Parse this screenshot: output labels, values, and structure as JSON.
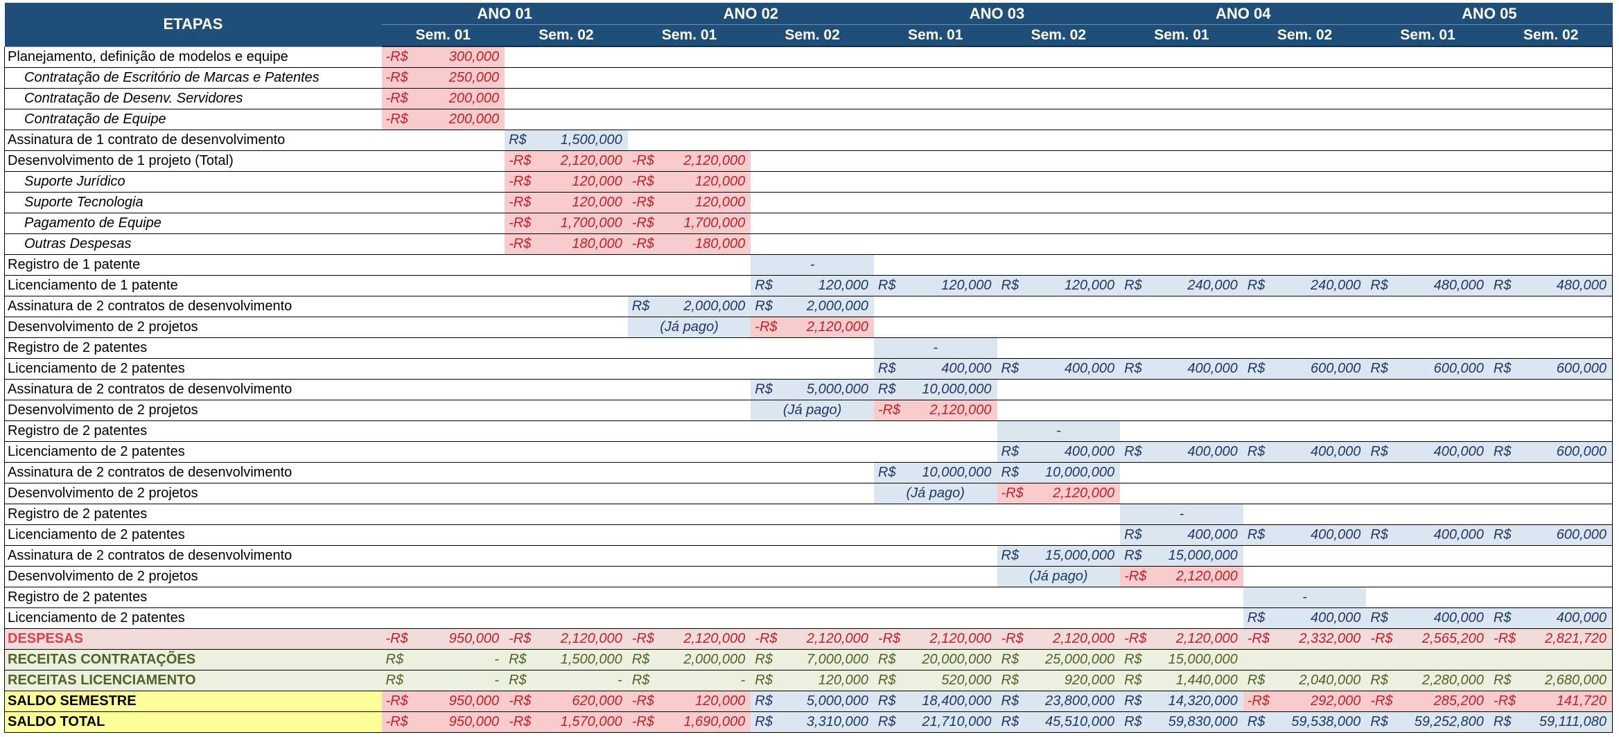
{
  "header": {
    "etapas": "ETAPAS",
    "years": [
      "ANO 01",
      "ANO 02",
      "ANO 03",
      "ANO 04",
      "ANO 05"
    ],
    "sems": [
      "Sem. 01",
      "Sem. 02",
      "Sem. 01",
      "Sem. 02",
      "Sem. 01",
      "Sem. 02",
      "Sem. 01",
      "Sem. 02",
      "Sem. 01",
      "Sem. 02"
    ]
  },
  "rows": [
    {
      "label": "Planejamento, definição de modelos e equipe",
      "style": "",
      "cells": [
        {
          "col": 0,
          "type": "neg",
          "cur": "-R$",
          "val": "300,000"
        }
      ]
    },
    {
      "label": "Contratação de Escritório de Marcas e Patentes",
      "style": "sub",
      "cells": [
        {
          "col": 0,
          "type": "neg",
          "cur": "-R$",
          "val": "250,000"
        }
      ]
    },
    {
      "label": "Contratação de Desenv. Servidores",
      "style": "sub",
      "cells": [
        {
          "col": 0,
          "type": "neg",
          "cur": "-R$",
          "val": "200,000"
        }
      ]
    },
    {
      "label": "Contratação de Equipe",
      "style": "sub",
      "cells": [
        {
          "col": 0,
          "type": "neg",
          "cur": "-R$",
          "val": "200,000"
        }
      ]
    },
    {
      "label": "Assinatura de 1 contrato de desenvolvimento",
      "style": "",
      "cells": [
        {
          "col": 1,
          "type": "pos",
          "cur": "R$",
          "val": "1,500,000"
        }
      ]
    },
    {
      "label": "Desenvolvimento de 1 projeto (Total)",
      "style": "",
      "cells": [
        {
          "col": 1,
          "type": "neg",
          "cur": "-R$",
          "val": "2,120,000"
        },
        {
          "col": 2,
          "type": "neg",
          "cur": "-R$",
          "val": "2,120,000"
        }
      ]
    },
    {
      "label": "Suporte Jurídico",
      "style": "sub",
      "cells": [
        {
          "col": 1,
          "type": "neg",
          "cur": "-R$",
          "val": "120,000"
        },
        {
          "col": 2,
          "type": "neg",
          "cur": "-R$",
          "val": "120,000"
        }
      ]
    },
    {
      "label": "Suporte Tecnologia",
      "style": "sub",
      "cells": [
        {
          "col": 1,
          "type": "neg",
          "cur": "-R$",
          "val": "120,000"
        },
        {
          "col": 2,
          "type": "neg",
          "cur": "-R$",
          "val": "120,000"
        }
      ]
    },
    {
      "label": "Pagamento de Equipe",
      "style": "sub",
      "cells": [
        {
          "col": 1,
          "type": "neg",
          "cur": "-R$",
          "val": "1,700,000"
        },
        {
          "col": 2,
          "type": "neg",
          "cur": "-R$",
          "val": "1,700,000"
        }
      ]
    },
    {
      "label": "Outras Despesas",
      "style": "sub",
      "cells": [
        {
          "col": 1,
          "type": "neg",
          "cur": "-R$",
          "val": "180,000"
        },
        {
          "col": 2,
          "type": "neg",
          "cur": "-R$",
          "val": "180,000"
        }
      ]
    },
    {
      "label": "Registro de 1 patente",
      "style": "",
      "cells": [
        {
          "col": 3,
          "type": "dash",
          "cur": "",
          "val": "-"
        }
      ]
    },
    {
      "label": "Licenciamento de 1 patente",
      "style": "",
      "cells": [
        {
          "col": 3,
          "type": "pos",
          "cur": "R$",
          "val": "120,000"
        },
        {
          "col": 4,
          "type": "pos",
          "cur": "R$",
          "val": "120,000"
        },
        {
          "col": 5,
          "type": "pos",
          "cur": "R$",
          "val": "120,000"
        },
        {
          "col": 6,
          "type": "pos",
          "cur": "R$",
          "val": "240,000"
        },
        {
          "col": 7,
          "type": "pos",
          "cur": "R$",
          "val": "240,000"
        },
        {
          "col": 8,
          "type": "pos",
          "cur": "R$",
          "val": "480,000"
        },
        {
          "col": 9,
          "type": "pos",
          "cur": "R$",
          "val": "480,000"
        }
      ]
    },
    {
      "label": "Assinatura de 2 contratos de desenvolvimento",
      "style": "",
      "cells": [
        {
          "col": 2,
          "type": "pos",
          "cur": "R$",
          "val": "2,000,000"
        },
        {
          "col": 3,
          "type": "pos",
          "cur": "R$",
          "val": "2,000,000"
        }
      ]
    },
    {
      "label": "Desenvolvimento de 2 projetos",
      "style": "",
      "cells": [
        {
          "col": 2,
          "type": "note",
          "cur": "",
          "val": "(Já pago)"
        },
        {
          "col": 3,
          "type": "neg",
          "cur": "-R$",
          "val": "2,120,000"
        }
      ]
    },
    {
      "label": "Registro de 2 patentes",
      "style": "",
      "cells": [
        {
          "col": 4,
          "type": "dash",
          "cur": "",
          "val": "-"
        }
      ]
    },
    {
      "label": "Licenciamento de 2 patentes",
      "style": "",
      "cells": [
        {
          "col": 4,
          "type": "pos",
          "cur": "R$",
          "val": "400,000"
        },
        {
          "col": 5,
          "type": "pos",
          "cur": "R$",
          "val": "400,000"
        },
        {
          "col": 6,
          "type": "pos",
          "cur": "R$",
          "val": "400,000"
        },
        {
          "col": 7,
          "type": "pos",
          "cur": "R$",
          "val": "600,000"
        },
        {
          "col": 8,
          "type": "pos",
          "cur": "R$",
          "val": "600,000"
        },
        {
          "col": 9,
          "type": "pos",
          "cur": "R$",
          "val": "600,000"
        }
      ]
    },
    {
      "label": "Assinatura de 2 contratos de desenvolvimento",
      "style": "",
      "cells": [
        {
          "col": 3,
          "type": "pos",
          "cur": "R$",
          "val": "5,000,000"
        },
        {
          "col": 4,
          "type": "pos",
          "cur": "R$",
          "val": "10,000,000"
        }
      ]
    },
    {
      "label": "Desenvolvimento de 2 projetos",
      "style": "",
      "cells": [
        {
          "col": 3,
          "type": "note",
          "cur": "",
          "val": "(Já pago)"
        },
        {
          "col": 4,
          "type": "neg",
          "cur": "-R$",
          "val": "2,120,000"
        }
      ]
    },
    {
      "label": "Registro de 2 patentes",
      "style": "",
      "cells": [
        {
          "col": 5,
          "type": "dash",
          "cur": "",
          "val": "-"
        }
      ]
    },
    {
      "label": "Licenciamento de 2 patentes",
      "style": "",
      "cells": [
        {
          "col": 5,
          "type": "pos",
          "cur": "R$",
          "val": "400,000"
        },
        {
          "col": 6,
          "type": "pos",
          "cur": "R$",
          "val": "400,000"
        },
        {
          "col": 7,
          "type": "pos",
          "cur": "R$",
          "val": "400,000"
        },
        {
          "col": 8,
          "type": "pos",
          "cur": "R$",
          "val": "400,000"
        },
        {
          "col": 9,
          "type": "pos",
          "cur": "R$",
          "val": "600,000"
        }
      ]
    },
    {
      "label": "Assinatura de 2 contratos de desenvolvimento",
      "style": "",
      "cells": [
        {
          "col": 4,
          "type": "pos",
          "cur": "R$",
          "val": "10,000,000"
        },
        {
          "col": 5,
          "type": "pos",
          "cur": "R$",
          "val": "10,000,000"
        }
      ]
    },
    {
      "label": "Desenvolvimento de 2 projetos",
      "style": "",
      "cells": [
        {
          "col": 4,
          "type": "note",
          "cur": "",
          "val": "(Já pago)"
        },
        {
          "col": 5,
          "type": "neg",
          "cur": "-R$",
          "val": "2,120,000"
        }
      ]
    },
    {
      "label": "Registro de 2 patentes",
      "style": "",
      "cells": [
        {
          "col": 6,
          "type": "dash",
          "cur": "",
          "val": "-"
        }
      ]
    },
    {
      "label": "Licenciamento de 2 patentes",
      "style": "",
      "cells": [
        {
          "col": 6,
          "type": "pos",
          "cur": "R$",
          "val": "400,000"
        },
        {
          "col": 7,
          "type": "pos",
          "cur": "R$",
          "val": "400,000"
        },
        {
          "col": 8,
          "type": "pos",
          "cur": "R$",
          "val": "400,000"
        },
        {
          "col": 9,
          "type": "pos",
          "cur": "R$",
          "val": "600,000"
        }
      ]
    },
    {
      "label": "Assinatura de 2 contratos de desenvolvimento",
      "style": "",
      "cells": [
        {
          "col": 5,
          "type": "pos",
          "cur": "R$",
          "val": "15,000,000"
        },
        {
          "col": 6,
          "type": "pos",
          "cur": "R$",
          "val": "15,000,000"
        }
      ]
    },
    {
      "label": "Desenvolvimento de 2 projetos",
      "style": "",
      "cells": [
        {
          "col": 5,
          "type": "note",
          "cur": "",
          "val": "(Já pago)"
        },
        {
          "col": 6,
          "type": "neg",
          "cur": "-R$",
          "val": "2,120,000"
        }
      ]
    },
    {
      "label": "Registro de 2 patentes",
      "style": "",
      "cells": [
        {
          "col": 7,
          "type": "dash",
          "cur": "",
          "val": "-"
        }
      ]
    },
    {
      "label": "Licenciamento de 2 patentes",
      "style": "",
      "cells": [
        {
          "col": 7,
          "type": "pos",
          "cur": "R$",
          "val": "400,000"
        },
        {
          "col": 8,
          "type": "pos",
          "cur": "R$",
          "val": "400,000"
        },
        {
          "col": 9,
          "type": "pos",
          "cur": "R$",
          "val": "400,000"
        }
      ]
    }
  ],
  "summary": [
    {
      "key": "desp",
      "label": "DESPESAS",
      "cells": [
        {
          "cur": "-R$",
          "val": "950,000"
        },
        {
          "cur": "-R$",
          "val": "2,120,000"
        },
        {
          "cur": "-R$",
          "val": "2,120,000"
        },
        {
          "cur": "-R$",
          "val": "2,120,000"
        },
        {
          "cur": "-R$",
          "val": "2,120,000"
        },
        {
          "cur": "-R$",
          "val": "2,120,000"
        },
        {
          "cur": "-R$",
          "val": "2,120,000"
        },
        {
          "cur": "-R$",
          "val": "2,332,000"
        },
        {
          "cur": "-R$",
          "val": "2,565,200"
        },
        {
          "cur": "-R$",
          "val": "2,821,720"
        }
      ]
    },
    {
      "key": "rc",
      "label": "RECEITAS CONTRATAÇÕES",
      "cells": [
        {
          "cur": "R$",
          "val": "-"
        },
        {
          "cur": "R$",
          "val": "1,500,000"
        },
        {
          "cur": "R$",
          "val": "2,000,000"
        },
        {
          "cur": "R$",
          "val": "7,000,000"
        },
        {
          "cur": "R$",
          "val": "20,000,000"
        },
        {
          "cur": "R$",
          "val": "25,000,000"
        },
        {
          "cur": "R$",
          "val": "15,000,000"
        },
        {
          "cur": "",
          "val": ""
        },
        {
          "cur": "",
          "val": ""
        },
        {
          "cur": "",
          "val": ""
        }
      ]
    },
    {
      "key": "rl",
      "label": "RECEITAS LICENCIAMENTO",
      "cells": [
        {
          "cur": "R$",
          "val": "-"
        },
        {
          "cur": "R$",
          "val": "-"
        },
        {
          "cur": "R$",
          "val": "-"
        },
        {
          "cur": "R$",
          "val": "120,000"
        },
        {
          "cur": "R$",
          "val": "520,000"
        },
        {
          "cur": "R$",
          "val": "920,000"
        },
        {
          "cur": "R$",
          "val": "1,440,000"
        },
        {
          "cur": "R$",
          "val": "2,040,000"
        },
        {
          "cur": "R$",
          "val": "2,280,000"
        },
        {
          "cur": "R$",
          "val": "2,680,000"
        }
      ]
    },
    {
      "key": "ss",
      "label": "SALDO SEMESTRE",
      "cells": [
        {
          "cur": "-R$",
          "val": "950,000",
          "type": "neg"
        },
        {
          "cur": "-R$",
          "val": "620,000",
          "type": "neg"
        },
        {
          "cur": "-R$",
          "val": "120,000",
          "type": "neg"
        },
        {
          "cur": "R$",
          "val": "5,000,000",
          "type": "pos"
        },
        {
          "cur": "R$",
          "val": "18,400,000",
          "type": "pos"
        },
        {
          "cur": "R$",
          "val": "23,800,000",
          "type": "pos"
        },
        {
          "cur": "R$",
          "val": "14,320,000",
          "type": "pos"
        },
        {
          "cur": "-R$",
          "val": "292,000",
          "type": "neg"
        },
        {
          "cur": "-R$",
          "val": "285,200",
          "type": "neg"
        },
        {
          "cur": "-R$",
          "val": "141,720",
          "type": "neg"
        }
      ]
    },
    {
      "key": "st",
      "label": "SALDO TOTAL",
      "cells": [
        {
          "cur": "-R$",
          "val": "950,000",
          "type": "neg"
        },
        {
          "cur": "-R$",
          "val": "1,570,000",
          "type": "neg"
        },
        {
          "cur": "-R$",
          "val": "1,690,000",
          "type": "neg"
        },
        {
          "cur": "R$",
          "val": "3,310,000",
          "type": "pos"
        },
        {
          "cur": "R$",
          "val": "21,710,000",
          "type": "pos"
        },
        {
          "cur": "R$",
          "val": "45,510,000",
          "type": "pos"
        },
        {
          "cur": "R$",
          "val": "59,830,000",
          "type": "pos"
        },
        {
          "cur": "R$",
          "val": "59,538,000",
          "type": "pos"
        },
        {
          "cur": "R$",
          "val": "59,252,800",
          "type": "pos"
        },
        {
          "cur": "R$",
          "val": "59,111,080",
          "type": "pos"
        }
      ]
    }
  ],
  "colors": {
    "header_bg": "#1f4e79",
    "negative_bg": "#f8cbcd",
    "negative_text": "#c0202a",
    "positive_bg": "#dce6f1",
    "positive_text": "#1f3864",
    "despesas_bg": "#f2dcdb",
    "receitas_bg": "#ebf1de",
    "receitas_text": "#4f6228",
    "saldo_label_bg": "#ffff99"
  }
}
